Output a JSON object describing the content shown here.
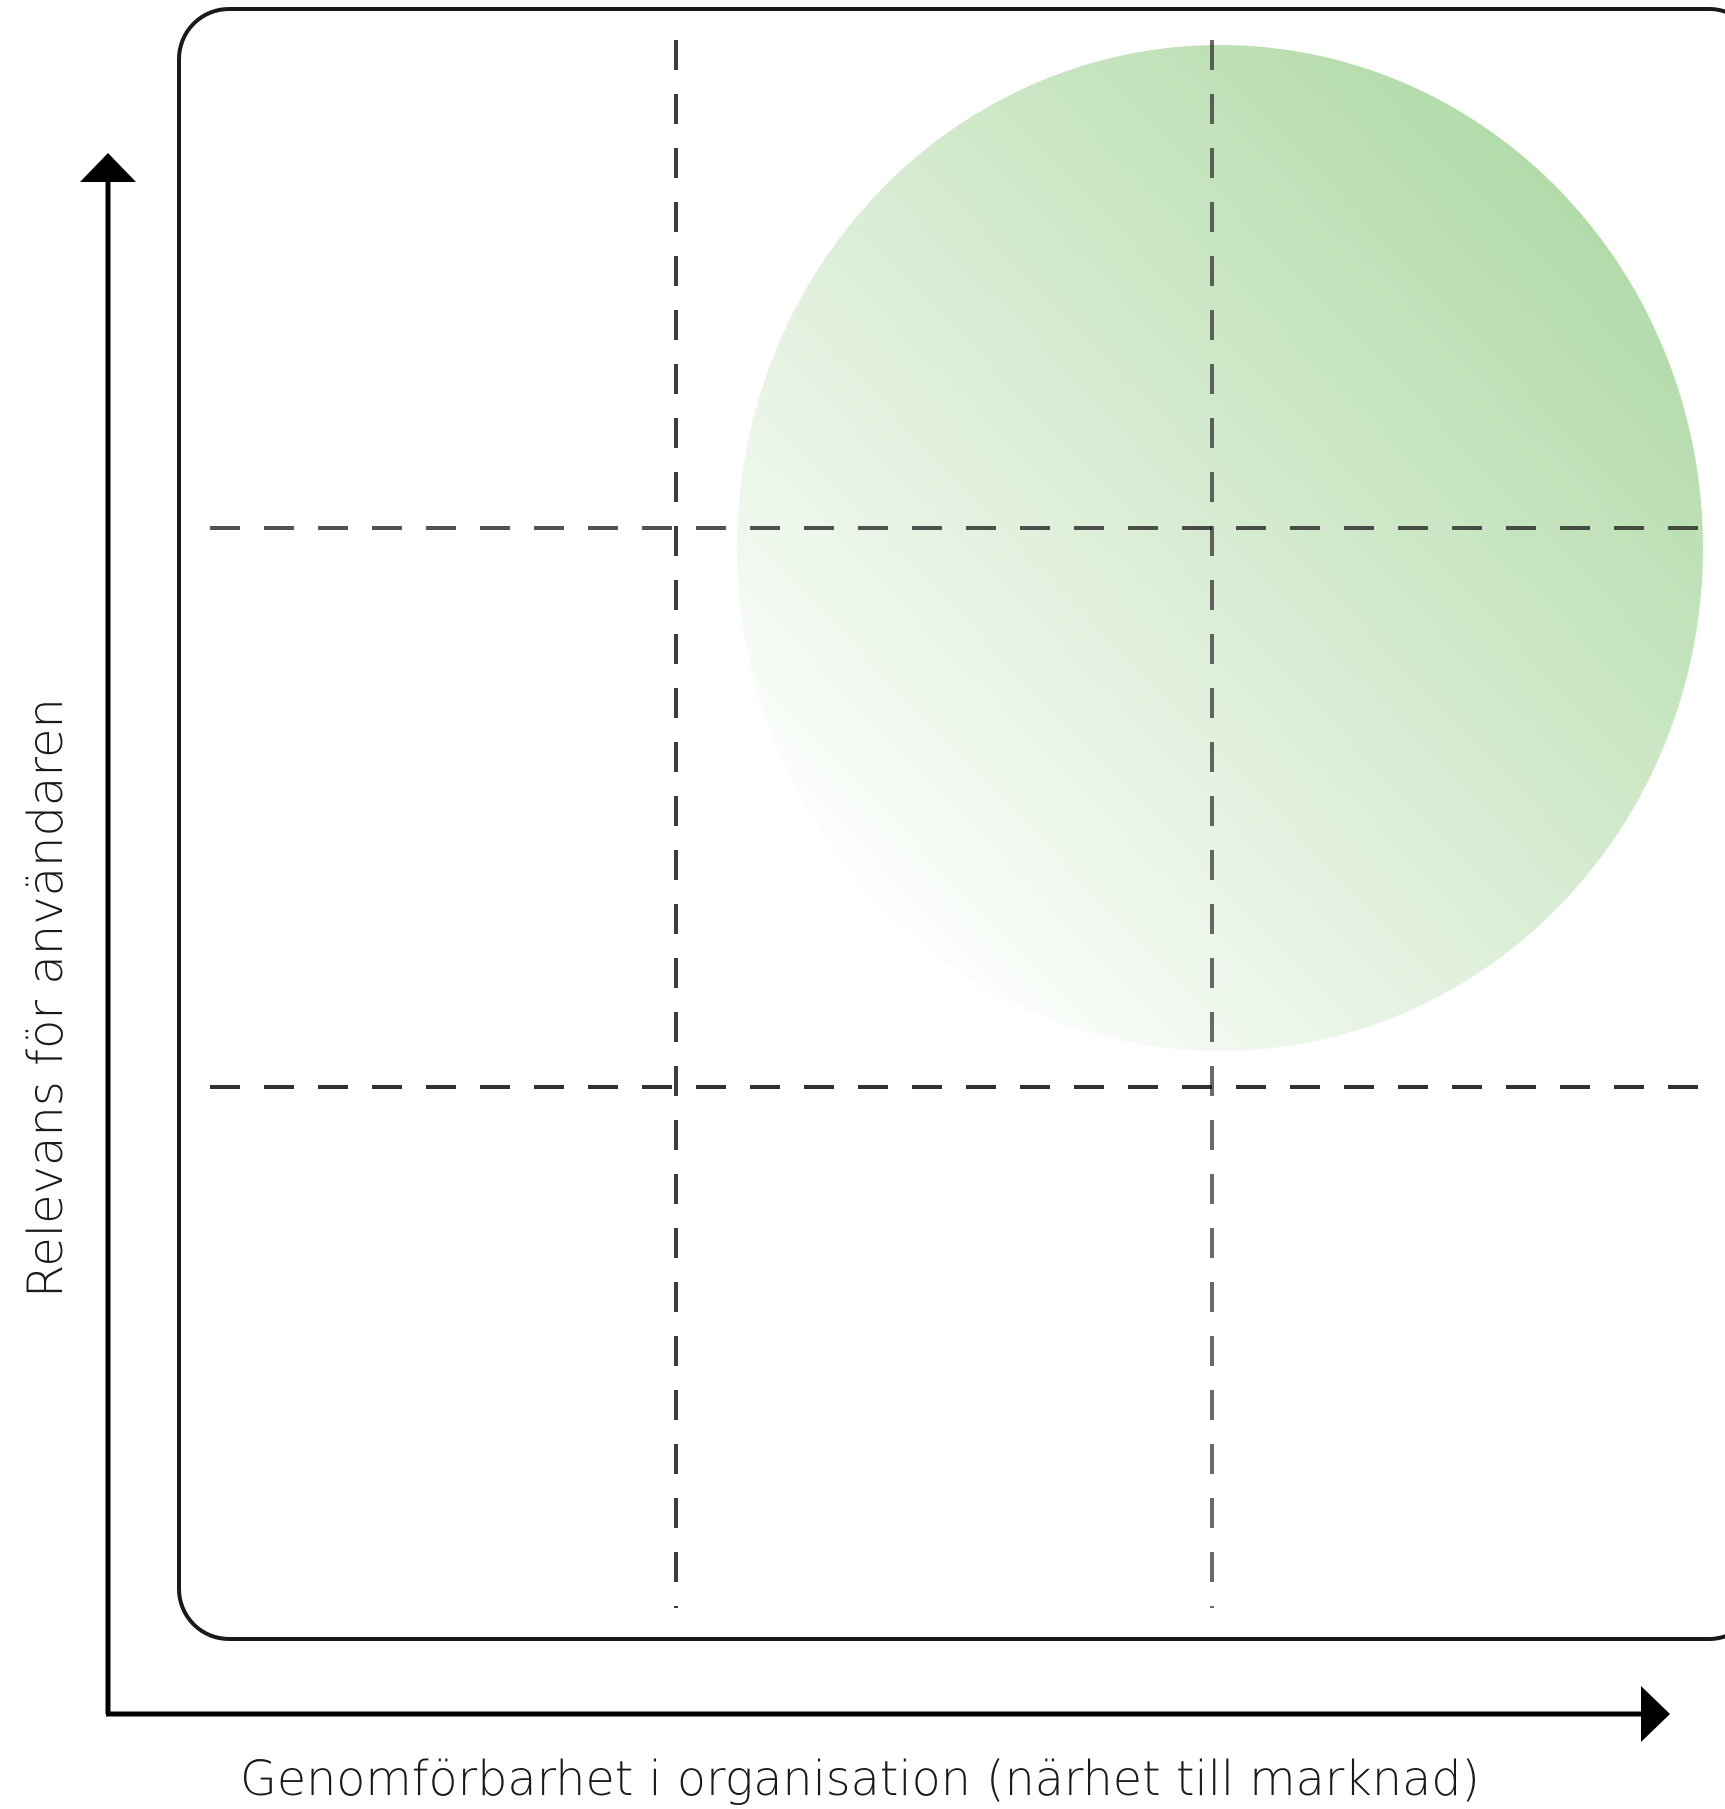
{
  "diagram": {
    "x_axis_label": "Genomförbarhet i organisation (närhet till marknad)",
    "y_axis_label": "Relevans för användaren",
    "grid": {
      "columns": 3,
      "rows": 3,
      "line_style": "dashed"
    },
    "highlight": {
      "shape": "circle",
      "color_strong": "#b3dbaa",
      "color_faded": "#ffffff",
      "region": "top-right"
    },
    "colors": {
      "frame": "#1a1a1a",
      "axis": "#000000",
      "grid": "#1a1a1a"
    }
  }
}
